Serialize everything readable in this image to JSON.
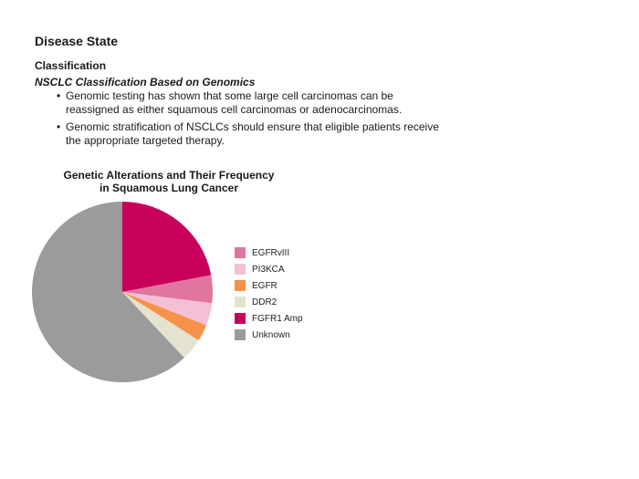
{
  "slide": {
    "heading": "Disease State",
    "subheading": "Classification",
    "subtitle": "NSCLC Classification Based on Genomics",
    "bullets": [
      "Genomic testing has shown that some large cell carcinomas can be reassigned as either squamous cell carcinomas or adenocarcinomas.",
      "Genomic stratification of NSCLCs should ensure that eligible patients receive the appropriate targeted therapy."
    ]
  },
  "chart_data": {
    "type": "pie",
    "title_line1": "Genetic Alterations and Their Frequency",
    "title_line2": "in Squamous Lung Cancer",
    "legend_position": "right",
    "slices": [
      {
        "label": "FGFR1 Amp",
        "value": 22,
        "color": "#c8005a"
      },
      {
        "label": "EGFRvIII",
        "value": 5,
        "color": "#e0769f"
      },
      {
        "label": "PI3KCA",
        "value": 4,
        "color": "#f4c0d6"
      },
      {
        "label": "EGFR",
        "value": 3,
        "color": "#f7924a"
      },
      {
        "label": "DDR2",
        "value": 4,
        "color": "#e3e3cf"
      },
      {
        "label": "Unknown",
        "value": 62,
        "color": "#9b9b9b"
      }
    ],
    "legend_order": [
      "EGFRvIII",
      "PI3KCA",
      "EGFR",
      "DDR2",
      "FGFR1 Amp",
      "Unknown"
    ]
  }
}
